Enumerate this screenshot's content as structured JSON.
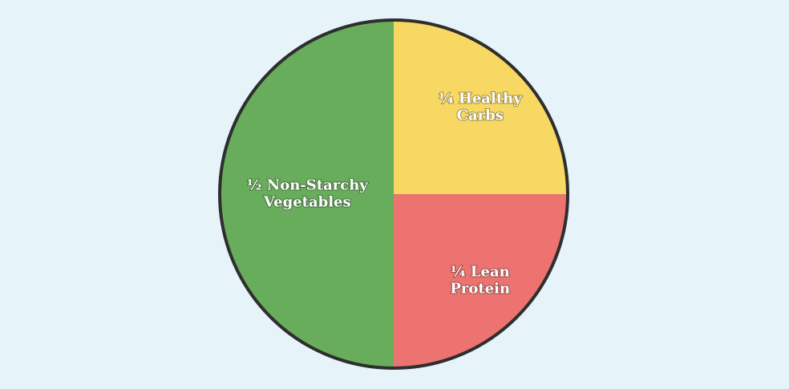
{
  "chart_data": {
    "type": "pie",
    "categories": [
      [
        "½ Non-Starchy",
        "Vegetables"
      ],
      [
        "¼ Healthy",
        "Carbs"
      ],
      [
        "¼ Lean",
        "Protein"
      ]
    ],
    "values": [
      0.5,
      0.25,
      0.25
    ],
    "colors": [
      "#68ad5c",
      "#f7d862",
      "#ec7370"
    ]
  }
}
